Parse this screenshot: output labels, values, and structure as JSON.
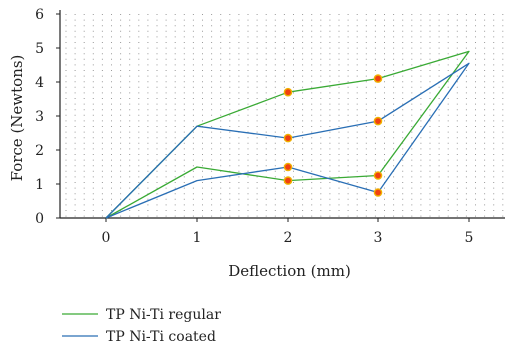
{
  "chart_data": {
    "type": "line",
    "title": "",
    "xlabel": "Deflection (mm)",
    "ylabel": "Force (Newtons)",
    "x_tick_labels": [
      "0",
      "1",
      "2",
      "3",
      "5"
    ],
    "y_tick_labels": [
      "0",
      "1",
      "2",
      "3",
      "4",
      "5",
      "6"
    ],
    "ylim": [
      0,
      6
    ],
    "x_scale": "categorical",
    "grid": "dotted",
    "legend_placement": "bottom-left",
    "series": [
      {
        "name": "TP Ni-Ti regular",
        "color": "#3aaa35",
        "points": [
          {
            "x": "0",
            "y": 0
          },
          {
            "x": "1",
            "y": 2.7
          },
          {
            "x": "2",
            "y": 3.7
          },
          {
            "x": "3",
            "y": 4.1
          },
          {
            "x": "5",
            "y": 4.9
          },
          {
            "x": "3",
            "y": 1.25
          },
          {
            "x": "2",
            "y": 1.1
          },
          {
            "x": "1",
            "y": 1.5
          },
          {
            "x": "0",
            "y": 0
          }
        ]
      },
      {
        "name": "TP Ni-Ti coated",
        "color": "#2a6fb5",
        "points": [
          {
            "x": "0",
            "y": 0
          },
          {
            "x": "1",
            "y": 2.7
          },
          {
            "x": "2",
            "y": 2.35
          },
          {
            "x": "3",
            "y": 2.85
          },
          {
            "x": "5",
            "y": 4.55
          },
          {
            "x": "3",
            "y": 0.75
          },
          {
            "x": "2",
            "y": 1.5
          },
          {
            "x": "1",
            "y": 1.1
          },
          {
            "x": "0",
            "y": 0
          }
        ]
      }
    ],
    "markers": {
      "color_fill": "#f04010",
      "color_edge": "#f0b000",
      "points": [
        {
          "x": "2",
          "y": 3.7
        },
        {
          "x": "3",
          "y": 4.1
        },
        {
          "x": "2",
          "y": 2.35
        },
        {
          "x": "3",
          "y": 2.85
        },
        {
          "x": "2",
          "y": 1.5
        },
        {
          "x": "2",
          "y": 1.1
        },
        {
          "x": "3",
          "y": 1.25
        },
        {
          "x": "3",
          "y": 0.75
        }
      ]
    }
  }
}
